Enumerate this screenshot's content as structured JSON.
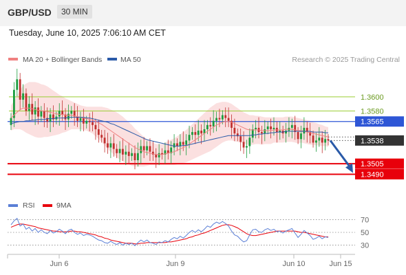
{
  "header": {
    "symbol": "GBP/USD",
    "timeframe": "30 MIN"
  },
  "datetime": "Tuesday, June 10, 2025 7:06:10 AM CET",
  "credit": "Research © 2025 Trading Central",
  "colors": {
    "ma20": "#f08080",
    "ma50": "#2a5aa8",
    "candle_up": "#1a9c3e",
    "candle_down": "#c0302f",
    "bollinger_fill": "#fadbdb",
    "level_green": "#9acd32",
    "level_blue": "#2e56d6",
    "level_red": "#e8000b",
    "rsi": "#5b7fd6",
    "rsi_ma": "#e8000b",
    "forecast_arrow": "#2a5aa8"
  },
  "chart_data": [
    {
      "type": "candlestick",
      "title": "",
      "legend": [
        {
          "name": "MA 20 + Bollinger Bands",
          "color": "#f08080"
        },
        {
          "name": "MA 50",
          "color": "#2a5aa8"
        }
      ],
      "legend_position": "top-left",
      "x_ticks": [
        "Jun 6",
        "Jun 9",
        "Jun 10",
        "Jun 15"
      ],
      "ylim": [
        1.3466,
        1.364
      ],
      "levels": [
        {
          "value": 1.36,
          "label": "1.3600",
          "style": "resistance"
        },
        {
          "value": 1.358,
          "label": "1.3580",
          "style": "resistance"
        },
        {
          "value": 1.3565,
          "label": "1.3565",
          "style": "pivot"
        },
        {
          "value": 1.3505,
          "label": "1.3505",
          "style": "support"
        },
        {
          "value": 1.349,
          "label": "1.3490",
          "style": "support"
        }
      ],
      "last_price": {
        "value": 1.3538,
        "label": "1.3538"
      },
      "forecast": {
        "from": 1.3538,
        "to": 1.349
      },
      "close": [
        1.357,
        1.361,
        1.3625,
        1.3596,
        1.3605,
        1.358,
        1.359,
        1.3575,
        1.3585,
        1.3572,
        1.358,
        1.357,
        1.3565,
        1.3575,
        1.3568,
        1.3572,
        1.358,
        1.3575,
        1.3568,
        1.3576,
        1.358,
        1.3572,
        1.3566,
        1.357,
        1.3562,
        1.3566,
        1.3564,
        1.356,
        1.3554,
        1.3546,
        1.3542,
        1.3534,
        1.3528,
        1.3534,
        1.3526,
        1.352,
        1.3526,
        1.3518,
        1.3522,
        1.3516,
        1.352,
        1.351,
        1.352,
        1.353,
        1.3524,
        1.353,
        1.3522,
        1.3518,
        1.3514,
        1.352,
        1.3518,
        1.3524,
        1.352,
        1.3528,
        1.3534,
        1.353,
        1.3536,
        1.3532,
        1.3538,
        1.3546,
        1.355,
        1.3546,
        1.3552,
        1.3548,
        1.3554,
        1.356,
        1.3558,
        1.3566,
        1.357,
        1.3568,
        1.3574,
        1.357,
        1.3566,
        1.3556,
        1.3548,
        1.3544,
        1.3536,
        1.3528,
        1.353,
        1.3542,
        1.3554,
        1.3556,
        1.355,
        1.3548,
        1.3554,
        1.3558,
        1.3554,
        1.3556,
        1.355,
        1.3552,
        1.3548,
        1.3552,
        1.3556,
        1.356,
        1.355,
        1.354,
        1.3548,
        1.3556,
        1.355,
        1.3545,
        1.3535,
        1.3538,
        1.3542,
        1.3535,
        1.354,
        1.3538
      ],
      "open": [
        1.356,
        1.357,
        1.361,
        1.3625,
        1.3596,
        1.3605,
        1.358,
        1.359,
        1.3575,
        1.3585,
        1.3572,
        1.358,
        1.357,
        1.3565,
        1.3575,
        1.3568,
        1.3572,
        1.358,
        1.3575,
        1.3568,
        1.3576,
        1.358,
        1.3572,
        1.3566,
        1.357,
        1.3562,
        1.3566,
        1.3564,
        1.356,
        1.3554,
        1.3546,
        1.3542,
        1.3534,
        1.3528,
        1.3534,
        1.3526,
        1.352,
        1.3526,
        1.3518,
        1.3522,
        1.3516,
        1.352,
        1.351,
        1.352,
        1.353,
        1.3524,
        1.353,
        1.3522,
        1.3518,
        1.3514,
        1.352,
        1.3518,
        1.3524,
        1.352,
        1.3528,
        1.3534,
        1.353,
        1.3536,
        1.3532,
        1.3538,
        1.3546,
        1.355,
        1.3546,
        1.3552,
        1.3548,
        1.3554,
        1.356,
        1.3558,
        1.3566,
        1.357,
        1.3568,
        1.3574,
        1.357,
        1.3566,
        1.3556,
        1.3548,
        1.3544,
        1.3536,
        1.3528,
        1.353,
        1.3542,
        1.3554,
        1.3556,
        1.355,
        1.3548,
        1.3554,
        1.3558,
        1.3554,
        1.3556,
        1.355,
        1.3552,
        1.3548,
        1.3552,
        1.3556,
        1.356,
        1.355,
        1.354,
        1.3548,
        1.3556,
        1.355,
        1.3545,
        1.3535,
        1.3538,
        1.3542,
        1.3535,
        1.354
      ],
      "ma20": [
        1.357,
        1.3574,
        1.3578,
        1.3582,
        1.3584,
        1.3584,
        1.3584,
        1.3583,
        1.3582,
        1.3581,
        1.358,
        1.358,
        1.3579,
        1.3578,
        1.3577,
        1.3576,
        1.3575,
        1.3575,
        1.3574,
        1.3574,
        1.3574,
        1.3573,
        1.3572,
        1.3571,
        1.357,
        1.3569,
        1.3568,
        1.3567,
        1.3565,
        1.3563,
        1.3561,
        1.3558,
        1.3555,
        1.3552,
        1.3549,
        1.3546,
        1.3543,
        1.354,
        1.3537,
        1.3534,
        1.3531,
        1.3528,
        1.3526,
        1.3524,
        1.3522,
        1.3521,
        1.352,
        1.3519,
        1.3518,
        1.3518,
        1.3518,
        1.3519,
        1.352,
        1.3521,
        1.3522,
        1.3524,
        1.3526,
        1.3528,
        1.353,
        1.3533,
        1.3536,
        1.3539,
        1.3542,
        1.3545,
        1.3548,
        1.3551,
        1.3554,
        1.3557,
        1.356,
        1.3562,
        1.3564,
        1.3565,
        1.3565,
        1.3564,
        1.3562,
        1.356,
        1.3558,
        1.3556,
        1.3554,
        1.3553,
        1.3553,
        1.3553,
        1.3553,
        1.3552,
        1.3552,
        1.3552,
        1.3552,
        1.3553,
        1.3553,
        1.3553,
        1.3553,
        1.3554,
        1.3554,
        1.3554,
        1.3553,
        1.3552,
        1.3552,
        1.3551,
        1.355,
        1.3549,
        1.3548,
        1.3547,
        1.3546,
        1.3545,
        1.3544,
        1.3543
      ],
      "band_width": [
        0.0018,
        0.002,
        0.0024,
        0.0028,
        0.0032,
        0.0035,
        0.0037,
        0.0038,
        0.0039,
        0.0039,
        0.0038,
        0.0037,
        0.0036,
        0.0034,
        0.0032,
        0.003,
        0.0028,
        0.0026,
        0.0024,
        0.0022,
        0.002,
        0.0019,
        0.0018,
        0.0017,
        0.0017,
        0.0017,
        0.0018,
        0.0019,
        0.0021,
        0.0023,
        0.0025,
        0.0027,
        0.0029,
        0.003,
        0.0031,
        0.0032,
        0.0032,
        0.0032,
        0.0031,
        0.003,
        0.0029,
        0.0027,
        0.0025,
        0.0023,
        0.0021,
        0.0019,
        0.0017,
        0.0016,
        0.0015,
        0.0015,
        0.0015,
        0.0016,
        0.0017,
        0.0018,
        0.0019,
        0.002,
        0.0021,
        0.0022,
        0.0023,
        0.0024,
        0.0025,
        0.0026,
        0.0027,
        0.0028,
        0.0029,
        0.003,
        0.0031,
        0.0031,
        0.0031,
        0.003,
        0.0029,
        0.0028,
        0.0027,
        0.0026,
        0.0025,
        0.0024,
        0.0023,
        0.0022,
        0.0022,
        0.0021,
        0.0021,
        0.002,
        0.002,
        0.002,
        0.0019,
        0.0019,
        0.0019,
        0.0018,
        0.0018,
        0.0018,
        0.0018,
        0.0018,
        0.0018,
        0.0018,
        0.0018,
        0.0018,
        0.0017,
        0.0017,
        0.0017,
        0.0017,
        0.0016,
        0.0016,
        0.0015,
        0.0015,
        0.0014,
        0.0014
      ],
      "ma50": [
        1.3562,
        1.3563,
        1.3564,
        1.3565,
        1.3565,
        1.3566,
        1.3566,
        1.3567,
        1.3567,
        1.3568,
        1.3568,
        1.3568,
        1.3569,
        1.3569,
        1.3569,
        1.357,
        1.357,
        1.357,
        1.357,
        1.3571,
        1.3571,
        1.3571,
        1.3571,
        1.3571,
        1.3571,
        1.357,
        1.357,
        1.3569,
        1.3568,
        1.3567,
        1.3566,
        1.3565,
        1.3564,
        1.3562,
        1.3561,
        1.3559,
        1.3557,
        1.3555,
        1.3553,
        1.3551,
        1.3549,
        1.3547,
        1.3545,
        1.3543,
        1.3541,
        1.3539,
        1.3538,
        1.3537,
        1.3536,
        1.3535,
        1.3534,
        1.3533,
        1.3532,
        1.3531,
        1.353,
        1.353,
        1.353,
        1.3531,
        1.3531,
        1.3532,
        1.3533,
        1.3534,
        1.3535,
        1.3536,
        1.3537,
        1.3538,
        1.3539,
        1.354,
        1.3541,
        1.3542,
        1.3543,
        1.3544,
        1.3545,
        1.3545,
        1.3545,
        1.3545,
        1.3545,
        1.3545,
        1.3545,
        1.3545,
        1.3546,
        1.3546,
        1.3547,
        1.3547,
        1.3548,
        1.3548,
        1.3549,
        1.3549,
        1.355,
        1.355,
        1.355,
        1.3551,
        1.3551,
        1.3551,
        1.3551,
        1.3551,
        1.3551,
        1.3551,
        1.3551,
        1.3551,
        1.355,
        1.355,
        1.355,
        1.355,
        1.3549,
        1.3549
      ]
    },
    {
      "type": "line",
      "title": "",
      "legend": [
        {
          "name": "RSI",
          "color": "#5b7fd6"
        },
        {
          "name": "9MA",
          "color": "#e8000b"
        }
      ],
      "legend_position": "top-left",
      "ylim": [
        22,
        78
      ],
      "y_ticks": [
        70,
        50,
        30
      ],
      "series": [
        {
          "name": "RSI",
          "values": [
            62,
            68,
            72,
            60,
            63,
            55,
            58,
            52,
            56,
            50,
            54,
            50,
            48,
            53,
            49,
            51,
            55,
            52,
            48,
            53,
            55,
            50,
            47,
            49,
            45,
            47,
            46,
            44,
            41,
            38,
            37,
            34,
            33,
            36,
            33,
            31,
            34,
            30,
            33,
            31,
            33,
            29,
            34,
            38,
            35,
            38,
            34,
            33,
            31,
            35,
            34,
            37,
            35,
            39,
            42,
            40,
            44,
            41,
            45,
            50,
            53,
            50,
            54,
            51,
            55,
            60,
            58,
            63,
            66,
            64,
            67,
            64,
            60,
            52,
            46,
            44,
            39,
            35,
            37,
            46,
            54,
            55,
            51,
            50,
            54,
            56,
            53,
            55,
            51,
            52,
            49,
            52,
            54,
            56,
            49,
            42,
            47,
            53,
            49,
            45,
            39,
            41,
            44,
            40,
            43,
            42
          ]
        },
        {
          "name": "9MA",
          "values": [
            58,
            60,
            62,
            63,
            63,
            62,
            61,
            60,
            59,
            57,
            56,
            55,
            54,
            53,
            52,
            52,
            51,
            51,
            51,
            51,
            52,
            52,
            51,
            51,
            50,
            49,
            48,
            47,
            46,
            44,
            43,
            41,
            40,
            38,
            37,
            36,
            35,
            34,
            33,
            33,
            33,
            32,
            32,
            33,
            33,
            34,
            34,
            34,
            34,
            34,
            34,
            34,
            35,
            35,
            36,
            37,
            38,
            39,
            40,
            42,
            43,
            45,
            46,
            48,
            49,
            51,
            53,
            55,
            57,
            59,
            61,
            62,
            62,
            61,
            59,
            57,
            54,
            51,
            48,
            46,
            45,
            45,
            46,
            47,
            48,
            49,
            50,
            51,
            52,
            52,
            52,
            52,
            52,
            52,
            52,
            51,
            50,
            50,
            49,
            48,
            47,
            46,
            45,
            44,
            43,
            43
          ]
        }
      ]
    }
  ]
}
